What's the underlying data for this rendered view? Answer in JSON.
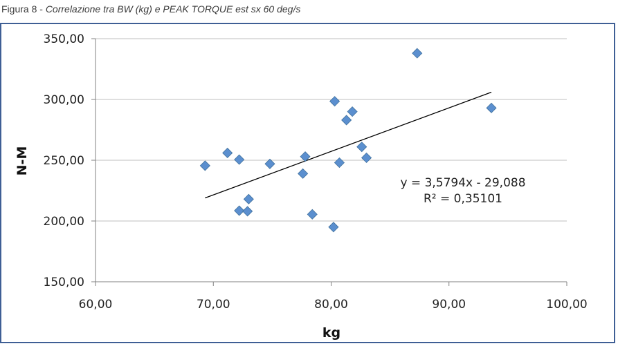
{
  "caption": {
    "figure_label": "Figura 8",
    "separator": " - ",
    "title": "Correlazione tra BW (kg) e PEAK TORQUE est sx 60 deg/s"
  },
  "colors": {
    "frame": "#3f5f95",
    "marker": "#5b8fcf",
    "marker_edge": "#41719c",
    "trendline": "#000000",
    "grid": "#bfbfbf"
  },
  "chart_data": {
    "type": "scatter",
    "title": "",
    "xlabel": "kg",
    "ylabel": "N-M",
    "xlim": [
      60,
      100
    ],
    "ylim": [
      150,
      350
    ],
    "x_ticks": [
      60,
      70,
      80,
      90,
      100
    ],
    "y_ticks": [
      150,
      200,
      250,
      300,
      350
    ],
    "x_tick_labels": [
      "60,00",
      "70,00",
      "80,00",
      "90,00",
      "100,00"
    ],
    "y_tick_labels": [
      "150,00",
      "200,00",
      "250,00",
      "300,00",
      "350,00"
    ],
    "grid": "horizontal",
    "marker": "diamond",
    "points": [
      {
        "x": 69.3,
        "y": 245.5
      },
      {
        "x": 71.2,
        "y": 256
      },
      {
        "x": 72.2,
        "y": 250.5
      },
      {
        "x": 72.2,
        "y": 208.5
      },
      {
        "x": 72.9,
        "y": 208
      },
      {
        "x": 73.0,
        "y": 218
      },
      {
        "x": 74.8,
        "y": 247
      },
      {
        "x": 77.6,
        "y": 239
      },
      {
        "x": 77.8,
        "y": 253
      },
      {
        "x": 78.4,
        "y": 205.5
      },
      {
        "x": 80.2,
        "y": 195
      },
      {
        "x": 80.3,
        "y": 298.5
      },
      {
        "x": 80.7,
        "y": 248
      },
      {
        "x": 81.3,
        "y": 283
      },
      {
        "x": 81.8,
        "y": 290
      },
      {
        "x": 82.6,
        "y": 261
      },
      {
        "x": 83.0,
        "y": 252
      },
      {
        "x": 87.3,
        "y": 338
      },
      {
        "x": 93.6,
        "y": 293
      }
    ],
    "trendline": {
      "slope": 3.5794,
      "intercept": -29.088,
      "x_range": [
        69.3,
        93.6
      ],
      "equation_label": "y = 3,5794x - 29,088",
      "r2_label": "R² = 0,35101"
    }
  }
}
